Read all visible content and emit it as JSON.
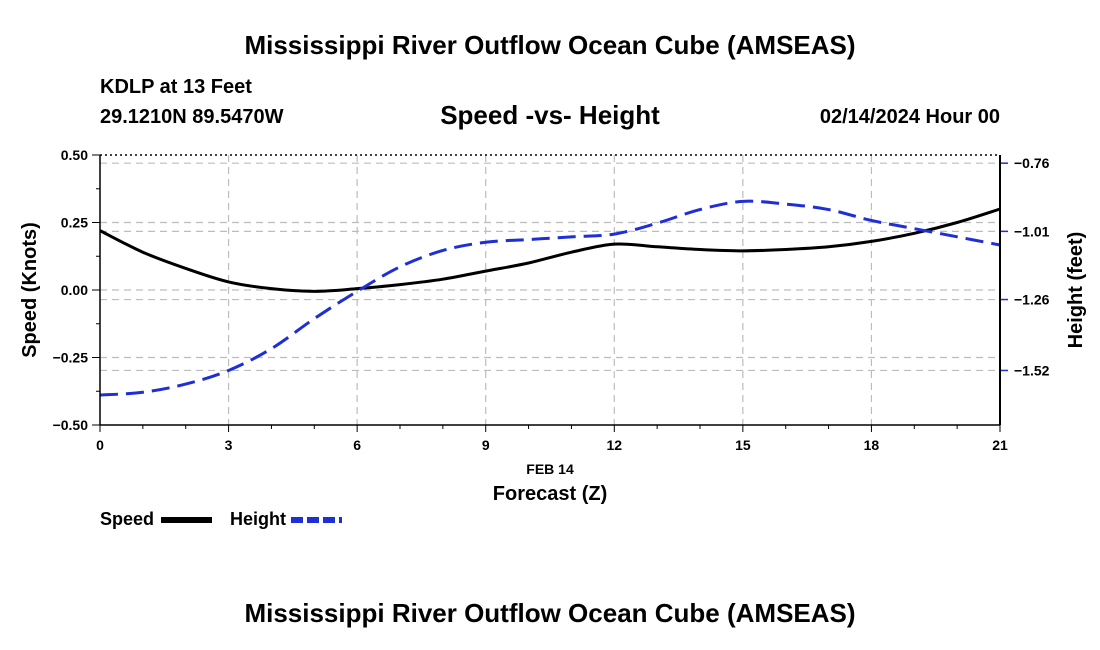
{
  "page": {
    "title": "Mississippi River Outflow Ocean Cube (AMSEAS)",
    "title_repeat": "Mississippi River Outflow Ocean Cube (AMSEAS)",
    "station": "KDLP at 13 Feet",
    "coords": "29.1210N  89.5470W",
    "datetime": "02/14/2024 Hour 00"
  },
  "chart_data": {
    "type": "line",
    "title": "Speed -vs- Height",
    "xlabel": "Forecast (Z)",
    "x_date_label": "FEB 14",
    "ylabel": "Speed (Knots)",
    "y2label": "Height (feet)",
    "xlim": [
      0,
      21
    ],
    "ylim": [
      -0.5,
      0.5
    ],
    "y2lim": [
      -1.72,
      -0.73
    ],
    "x_ticks": [
      0,
      3,
      6,
      9,
      12,
      15,
      18,
      21
    ],
    "y_ticks": [
      -0.5,
      -0.25,
      0.0,
      0.25,
      0.5
    ],
    "y_tick_labels": [
      "−0.50",
      "−0.25",
      "0.00",
      "0.25",
      "0.50"
    ],
    "y2_ticks": [
      -1.52,
      -1.26,
      -1.01,
      -0.76
    ],
    "y2_tick_labels": [
      "−1.52",
      "−1.26",
      "−1.01",
      "−0.76"
    ],
    "grid": true,
    "legend_position": "bottom-left",
    "series": [
      {
        "name": "Speed",
        "axis": "left",
        "color": "#000000",
        "dash": "solid",
        "x": [
          0,
          1,
          2,
          3,
          4,
          5,
          6,
          7,
          8,
          9,
          10,
          11,
          12,
          13,
          14,
          15,
          16,
          17,
          18,
          19,
          20,
          21
        ],
        "values": [
          0.22,
          0.14,
          0.08,
          0.03,
          0.005,
          -0.005,
          0.005,
          0.02,
          0.04,
          0.07,
          0.1,
          0.14,
          0.17,
          0.16,
          0.15,
          0.145,
          0.15,
          0.16,
          0.18,
          0.21,
          0.25,
          0.3
        ]
      },
      {
        "name": "Height",
        "axis": "right",
        "color": "#1f2fd6",
        "dash": "dashed",
        "x": [
          0,
          1,
          2,
          3,
          4,
          5,
          6,
          7,
          8,
          9,
          10,
          11,
          12,
          13,
          14,
          15,
          16,
          17,
          18,
          19,
          20,
          21
        ],
        "values": [
          -1.61,
          -1.6,
          -1.57,
          -1.52,
          -1.44,
          -1.33,
          -1.23,
          -1.14,
          -1.08,
          -1.05,
          -1.04,
          -1.03,
          -1.02,
          -0.98,
          -0.93,
          -0.9,
          -0.91,
          -0.93,
          -0.97,
          -1.0,
          -1.03,
          -1.06
        ]
      }
    ],
    "legend": [
      {
        "label": "Speed",
        "color": "#000000",
        "dash": "solid"
      },
      {
        "label": "Height",
        "color": "#1f2fd6",
        "dash": "dashed"
      }
    ]
  }
}
